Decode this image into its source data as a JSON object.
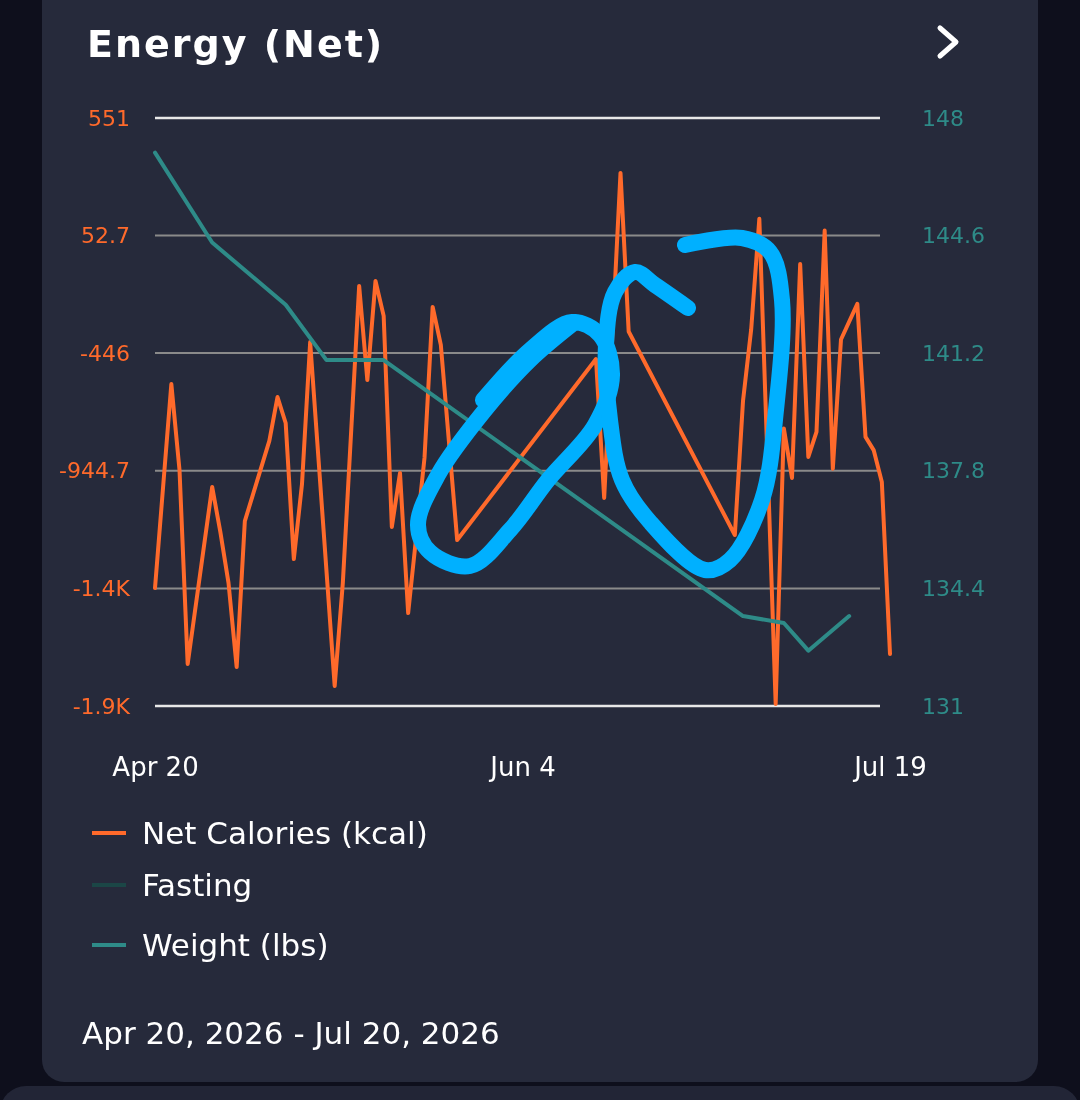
{
  "chart_data": {
    "type": "line",
    "title": "Energy (Net)",
    "annotations": [
      "Apr 20, 2026 - Jul 20, 2026"
    ],
    "xlim": [
      "2026-04-20",
      "2026-07-19"
    ],
    "xticks": [
      {
        "value": "2026-04-20",
        "label": "Apr 20"
      },
      {
        "value": "2026-06-04",
        "label": "Jun 4"
      },
      {
        "value": "2026-07-19",
        "label": "Jul 19"
      }
    ],
    "ylim": [
      -1941.9,
      551
    ],
    "yticks": [
      {
        "value": -1941.9,
        "label": "-1.9K"
      },
      {
        "value": -1443.6,
        "label": "-1.4K"
      },
      -944.7,
      {
        "value": -445.6,
        "label": "-446"
      },
      52.7,
      551
    ],
    "y2lim": [
      131,
      148
    ],
    "y2ticks": [
      131,
      134.4,
      137.8,
      141.2,
      144.6,
      148
    ],
    "grid": "y",
    "legend": "bottom",
    "marker": "none",
    "line_style": "solid",
    "series": [
      {
        "name": "Net Calories (kcal)",
        "color": "#ff6a2b",
        "x": [
          "2026-04-20",
          "2026-04-22",
          "2026-04-23",
          "2026-04-24",
          "2026-04-27",
          "2026-04-28",
          "2026-04-29",
          "2026-04-30",
          "2026-05-01",
          "2026-05-04",
          "2026-05-05",
          "2026-05-06",
          "2026-05-07",
          "2026-05-08",
          "2026-05-09",
          "2026-05-12",
          "2026-05-13",
          "2026-05-15",
          "2026-05-16",
          "2026-05-17",
          "2026-05-18",
          "2026-05-19",
          "2026-05-20",
          "2026-05-21",
          "2026-05-23",
          "2026-05-24",
          "2026-05-25",
          "2026-05-27",
          "2026-06-13",
          "2026-06-14",
          "2026-06-16",
          "2026-06-17",
          "2026-06-30",
          "2026-07-01",
          "2026-07-02",
          "2026-07-03",
          "2026-07-05",
          "2026-07-06",
          "2026-07-07",
          "2026-07-08",
          "2026-07-09",
          "2026-07-10",
          "2026-07-11",
          "2026-07-12",
          "2026-07-13",
          "2026-07-15",
          "2026-07-16",
          "2026-07-17",
          "2026-07-18",
          "2026-07-19"
        ],
        "values": [
          -1442,
          -577,
          -941,
          -1764,
          -1013,
          -1204,
          -1420,
          -1777,
          -1158,
          -818,
          -632,
          -742,
          -1319,
          -1001,
          -399,
          -1857,
          -1420,
          -161,
          -560,
          -140,
          -288,
          -1183,
          -954,
          -1548,
          -890,
          -250,
          -411,
          -1238,
          -471,
          -1060,
          318,
          -354,
          -1217,
          -649,
          -346,
          124,
          -1933,
          -765,
          -975,
          -68,
          -886,
          -780,
          74,
          -936,
          -388,
          -237,
          -801,
          -857,
          -992,
          -1721
        ]
      },
      {
        "name": "Fasting",
        "color": "#1b4646"
      },
      {
        "name": "Weight (lbs)",
        "color": "#2e8b88",
        "axis": "y2",
        "x": [
          "2026-04-20",
          "2026-04-27",
          "2026-05-06",
          "2026-05-11",
          "2026-05-18",
          "2026-07-01",
          "2026-07-06",
          "2026-07-09",
          "2026-07-14"
        ],
        "values": [
          147.0,
          144.4,
          142.6,
          141.0,
          141.0,
          133.6,
          133.4,
          132.6,
          133.6
        ]
      }
    ]
  }
}
